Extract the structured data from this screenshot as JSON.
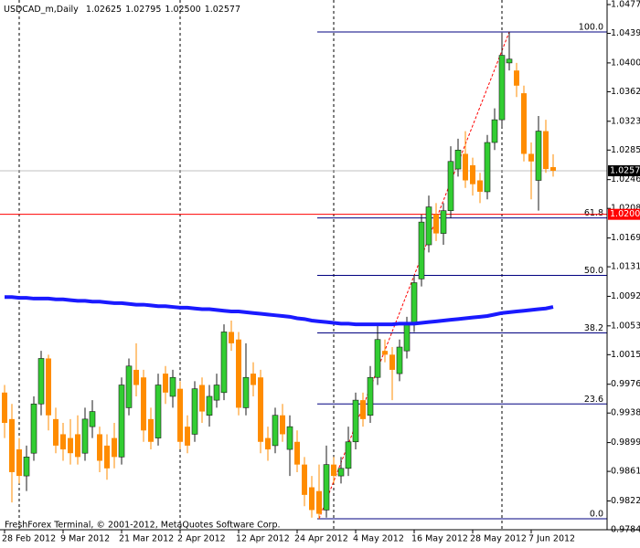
{
  "chart_data": {
    "type": "candlestick",
    "title": "USDCAD_m,Daily",
    "last_bar_labels": {
      "open": "1.02625",
      "high": "1.02795",
      "low": "1.02500",
      "close": "1.02577"
    },
    "footer": "FreshForex Terminal, © 2001-2012, MetaQuotes Software Corp.",
    "categories": [
      "28 Feb 2012",
      null,
      null,
      null,
      null,
      null,
      null,
      null,
      "9 Mar 2012",
      null,
      null,
      null,
      null,
      null,
      null,
      null,
      "21 Mar 2012",
      null,
      null,
      null,
      null,
      null,
      null,
      null,
      "2 Apr 2012",
      null,
      null,
      null,
      null,
      null,
      null,
      null,
      "12 Apr 2012",
      null,
      null,
      null,
      null,
      null,
      null,
      null,
      "24 Apr 2012",
      null,
      null,
      null,
      null,
      null,
      null,
      null,
      "4 May 2012",
      null,
      null,
      null,
      null,
      null,
      null,
      null,
      "16 May 2012",
      null,
      null,
      null,
      null,
      null,
      null,
      null,
      "28 May 2012",
      null,
      null,
      null,
      null,
      null,
      null,
      null,
      "7 Jun 2012",
      null,
      null,
      null
    ],
    "open": [
      0.9965,
      0.993,
      0.989,
      0.9855,
      0.9885,
      0.995,
      1.001,
      0.993,
      0.991,
      0.9905,
      0.991,
      0.9885,
      0.992,
      0.991,
      0.9895,
      0.9905,
      0.988,
      0.9945,
      0.9995,
      0.9985,
      0.993,
      0.9905,
      0.999,
      0.996,
      0.997,
      0.992,
      0.991,
      0.9975,
      0.9935,
      0.9955,
      0.9965,
      1.0045,
      1.0035,
      0.9945,
      0.999,
      0.9985,
      0.9905,
      0.9895,
      0.9935,
      0.989,
      0.99,
      0.987,
      0.984,
      0.9835,
      0.981,
      0.987,
      0.9855,
      0.9865,
      0.99,
      0.9955,
      0.9935,
      0.9985,
      1.002,
      1.0015,
      0.999,
      1.002,
      1.0055,
      1.0115,
      1.016,
      1.02,
      1.0175,
      1.0205,
      1.026,
      1.028,
      1.0265,
      1.0245,
      1.023,
      1.0295,
      1.0325,
      1.04,
      1.039,
      1.036,
      1.028,
      1.0245,
      1.031,
      1.02625
    ],
    "high": [
      0.9975,
      0.995,
      0.9905,
      0.9895,
      0.996,
      1.002,
      1.0015,
      0.9945,
      0.9925,
      0.993,
      0.9935,
      0.9945,
      0.9955,
      0.992,
      0.991,
      0.9925,
      0.9985,
      1.001,
      1.003,
      0.9995,
      0.9945,
      0.999,
      1.0,
      0.9995,
      0.998,
      0.9935,
      0.998,
      0.9985,
      0.9975,
      0.999,
      1.0055,
      1.006,
      1.0045,
      1.003,
      1.0005,
      0.9995,
      0.992,
      0.9945,
      0.995,
      0.9935,
      0.9915,
      0.988,
      0.9855,
      0.987,
      0.9895,
      0.988,
      0.988,
      0.992,
      0.9965,
      0.9965,
      1.0,
      1.0055,
      1.0035,
      1.0025,
      1.0035,
      1.0065,
      1.012,
      1.02,
      1.0225,
      1.0215,
      1.0215,
      1.029,
      1.03,
      1.031,
      1.0275,
      1.0255,
      1.0305,
      1.034,
      1.044,
      1.04408,
      1.04,
      1.037,
      1.0295,
      1.033,
      1.0325,
      1.02795
    ],
    "low": [
      0.9905,
      0.982,
      0.9845,
      0.9835,
      0.9875,
      0.9935,
      0.9915,
      0.9885,
      0.9875,
      0.987,
      0.987,
      0.9875,
      0.9905,
      0.986,
      0.985,
      0.9865,
      0.987,
      0.9935,
      0.996,
      0.99,
      0.989,
      0.9895,
      0.995,
      0.9945,
      0.989,
      0.9885,
      0.99,
      0.9925,
      0.992,
      0.9945,
      0.9955,
      1.002,
      0.9935,
      0.9935,
      0.996,
      0.9885,
      0.9875,
      0.9885,
      0.99,
      0.9855,
      0.986,
      0.9815,
      0.98,
      0.97984,
      0.98,
      0.9845,
      0.9845,
      0.9855,
      0.989,
      0.992,
      0.9925,
      0.9975,
      1.0005,
      0.9955,
      0.998,
      1.001,
      1.0045,
      1.0105,
      1.015,
      1.0165,
      1.016,
      1.0195,
      1.025,
      1.0235,
      1.0225,
      1.0215,
      1.022,
      1.0285,
      1.0315,
      1.039,
      1.0355,
      1.027,
      1.022,
      1.0205,
      1.0255,
      1.025
    ],
    "close": [
      0.9925,
      0.986,
      0.9855,
      0.988,
      0.995,
      1.001,
      0.9935,
      0.9895,
      0.989,
      0.9885,
      0.988,
      0.993,
      0.994,
      0.9875,
      0.9865,
      0.988,
      0.9975,
      1.0,
      0.9975,
      0.9915,
      0.99,
      0.9975,
      0.9965,
      0.9985,
      0.99,
      0.9895,
      0.997,
      0.994,
      0.996,
      0.9975,
      1.0045,
      1.003,
      0.9945,
      0.9985,
      0.9975,
      0.99,
      0.989,
      0.9935,
      0.991,
      0.992,
      0.987,
      0.983,
      0.981,
      0.9805,
      0.987,
      0.9855,
      0.9865,
      0.99,
      0.9955,
      0.993,
      0.9985,
      1.0035,
      1.0015,
      0.9995,
      1.0025,
      1.0055,
      1.011,
      1.019,
      1.021,
      1.0175,
      1.0205,
      1.027,
      1.0285,
      1.0245,
      1.024,
      1.023,
      1.0295,
      1.0325,
      1.041,
      1.0405,
      1.037,
      1.028,
      1.027,
      1.031,
      1.026,
      1.02577
    ],
    "up_color": "#32cd32",
    "down_color": "#ff8c00",
    "ma_values": [
      1.0091,
      1.0091,
      1.009,
      1.009,
      1.0089,
      1.0089,
      1.0089,
      1.0088,
      1.0088,
      1.0087,
      1.0086,
      1.0086,
      1.0085,
      1.0085,
      1.0084,
      1.0083,
      1.0083,
      1.0082,
      1.0081,
      1.0081,
      1.008,
      1.0079,
      1.0079,
      1.0078,
      1.0077,
      1.0077,
      1.0076,
      1.0075,
      1.0075,
      1.0074,
      1.0073,
      1.0072,
      1.0072,
      1.0071,
      1.007,
      1.0069,
      1.0068,
      1.0067,
      1.0066,
      1.0065,
      1.0063,
      1.0062,
      1.006,
      1.0059,
      1.0058,
      1.0057,
      1.0056,
      1.0056,
      1.0055,
      1.0055,
      1.0055,
      1.0055,
      1.0055,
      1.0055,
      1.0056,
      1.0056,
      1.0056,
      1.0057,
      1.0058,
      1.0059,
      1.006,
      1.0061,
      1.0062,
      1.0063,
      1.0064,
      1.0065,
      1.0066,
      1.0068,
      1.007,
      1.0071,
      1.0072,
      1.0073,
      1.0074,
      1.0075,
      1.0076,
      1.0078
    ],
    "ma_color": "#1a1aff",
    "hline": {
      "value": 1.02002,
      "color": "#ff0000"
    },
    "fibo": {
      "low": 0.97984,
      "high": 1.04408,
      "color": "#000080",
      "trend_color": "#ff0000",
      "levels": [
        {
          "value": 0,
          "label": "0.0"
        },
        23.6,
        38.2,
        {
          "value": 50,
          "label": "50.0"
        },
        61.8,
        {
          "value": 100,
          "label": "100.0"
        }
      ]
    },
    "ylim": [
      0.9784,
      1.0477
    ],
    "yticks": [
      {
        "value": 1.0477,
        "label": "1.04770"
      },
      {
        "value": 1.0439,
        "label": "1.04390"
      },
      {
        "value": 1.04,
        "label": "1.04000"
      },
      {
        "value": 1.0362,
        "label": "1.03620"
      },
      {
        "value": 1.0323,
        "label": "1.03230"
      },
      {
        "value": 1.0285,
        "label": "1.02850"
      },
      {
        "value": 1.0246,
        "label": "1.02460"
      },
      {
        "value": 1.0208,
        "label": "1.02080"
      },
      {
        "value": 1.0169,
        "label": "1.01690"
      },
      {
        "value": 1.0131,
        "label": "1.01310"
      },
      {
        "value": 1.0092,
        "label": "1.00920"
      },
      {
        "value": 1.0053,
        "label": "1.00530"
      },
      {
        "value": 1.0015,
        "label": "1.00150"
      },
      {
        "value": 0.9976,
        "label": "0.99760"
      },
      {
        "value": 0.9938,
        "label": "0.99380"
      },
      {
        "value": 0.9899,
        "label": "0.98990"
      },
      {
        "value": 0.9861,
        "label": "0.98610"
      },
      {
        "value": 0.9822,
        "label": "0.98220"
      },
      {
        "value": 0.9784,
        "label": "0.97840"
      }
    ]
  }
}
